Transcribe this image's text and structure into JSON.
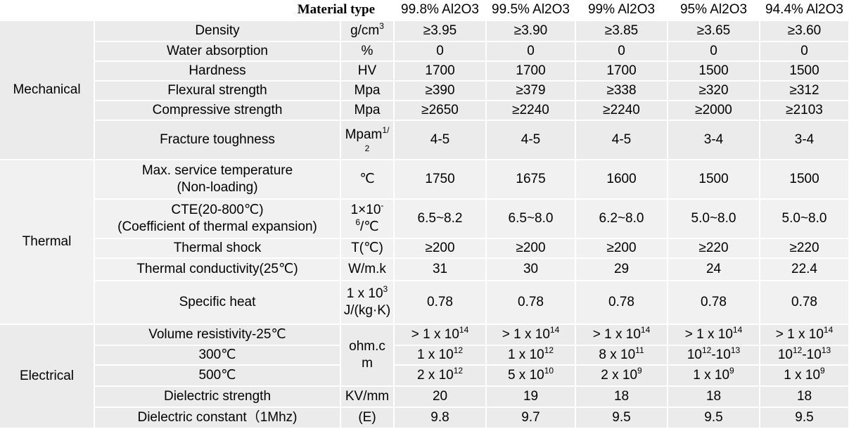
{
  "header": {
    "material_type": "Material type",
    "grades": [
      "99.8% Al2O3",
      "99.5% Al2O3",
      "99% Al2O3",
      "95% Al2O3",
      "94.4% Al2O3"
    ]
  },
  "categories": {
    "mechanical": "Mechanical",
    "thermal": "Thermal",
    "electrical": "Electrical"
  },
  "rows": {
    "density": {
      "name": "Density",
      "unit": "g/cm",
      "unit_sup": "3",
      "values": [
        "≥3.95",
        "≥3.90",
        "≥3.85",
        "≥3.65",
        "≥3.60"
      ]
    },
    "water_absorption": {
      "name": "Water absorption",
      "unit": "%",
      "values": [
        "0",
        "0",
        "0",
        "0",
        "0"
      ]
    },
    "hardness": {
      "name": "Hardness",
      "unit": "HV",
      "values": [
        "1700",
        "1700",
        "1700",
        "1500",
        "1500"
      ]
    },
    "flexural": {
      "name": "Flexural strength",
      "unit": "Mpa",
      "values": [
        "≥390",
        "≥379",
        "≥338",
        "≥320",
        "≥312"
      ]
    },
    "compressive": {
      "name": "Compressive strength",
      "unit": "Mpa",
      "values": [
        "≥2650",
        "≥2240",
        "≥2240",
        "≥2000",
        "≥2103"
      ]
    },
    "fracture": {
      "name": "Fracture toughness",
      "unit": "Mpam",
      "unit_sup": "1/",
      "unit_sub": "2",
      "values": [
        "4-5",
        "4-5",
        "4-5",
        "3-4",
        "3-4"
      ]
    },
    "max_temp": {
      "name_line1": "Max. service temperature",
      "name_line2": "(Non-loading)",
      "unit": "℃",
      "values": [
        "1750",
        "1675",
        "1600",
        "1500",
        "1500"
      ]
    },
    "cte": {
      "name_line1": "CTE(20-800℃)",
      "name_line2": "(Coefficient of thermal expansion)",
      "unit_line1": "1×10",
      "unit_sup1": "-",
      "unit_sup2": "6",
      "unit_line2": "/℃",
      "values": [
        "6.5~8.2",
        "6.5~8.0",
        "6.2~8.0",
        "5.0~8.0",
        "5.0~8.0"
      ]
    },
    "thermal_shock": {
      "name": "Thermal shock",
      "unit": "T(℃)",
      "values": [
        "≥200",
        "≥200",
        "≥200",
        "≥220",
        "≥220"
      ]
    },
    "conductivity": {
      "name": "Thermal conductivity(25℃)",
      "unit": "W/m.k",
      "values": [
        "31",
        "30",
        "29",
        "24",
        "22.4"
      ]
    },
    "specific_heat": {
      "name": "Specific heat",
      "unit_line1": "1 x 10",
      "unit_sup": "3",
      "unit_line2": "J/(kg·K)",
      "values": [
        "0.78",
        "0.78",
        "0.78",
        "0.78",
        "0.78"
      ]
    },
    "volume_resistivity": {
      "name": "Volume  resistivity-25℃",
      "unit_line1": "ohm.c",
      "unit_line2": "m",
      "values": [
        {
          "base": "> 1 x 10",
          "exp": "14"
        },
        {
          "base": "> 1 x 10",
          "exp": "14"
        },
        {
          "base": "> 1 x 10",
          "exp": "14"
        },
        {
          "base": "> 1 x 10",
          "exp": "14"
        },
        {
          "base": "> 1 x 10",
          "exp": "14"
        }
      ]
    },
    "r300": {
      "name": "300℃",
      "values": [
        {
          "base": "1 x 10",
          "exp": "12"
        },
        {
          "base": "1 x 10",
          "exp": "12"
        },
        {
          "base": "8 x 10",
          "exp": "11"
        },
        {
          "a": "10",
          "aexp": "12",
          "b": "-10",
          "bexp": "13"
        },
        {
          "a": "10",
          "aexp": "12",
          "b": "-10",
          "bexp": "13"
        }
      ]
    },
    "r500": {
      "name": "500℃",
      "values": [
        {
          "base": "2 x 10",
          "exp": "12"
        },
        {
          "base": "5 x 10",
          "exp": "10"
        },
        {
          "base": "2 x 10",
          "exp": "9"
        },
        {
          "base": "1 x 10",
          "exp": "9"
        },
        {
          "base": "1 x 10",
          "exp": "9"
        }
      ]
    },
    "dielectric_strength": {
      "name": "Dielectric strength",
      "unit": "KV/mm",
      "values": [
        "20",
        "19",
        "18",
        "18",
        "18"
      ]
    },
    "dielectric_constant": {
      "name": "Dielectric constant（1Mhz)",
      "unit": "(E)",
      "values": [
        "9.8",
        "9.7",
        "9.5",
        "9.5",
        "9.5"
      ]
    }
  }
}
